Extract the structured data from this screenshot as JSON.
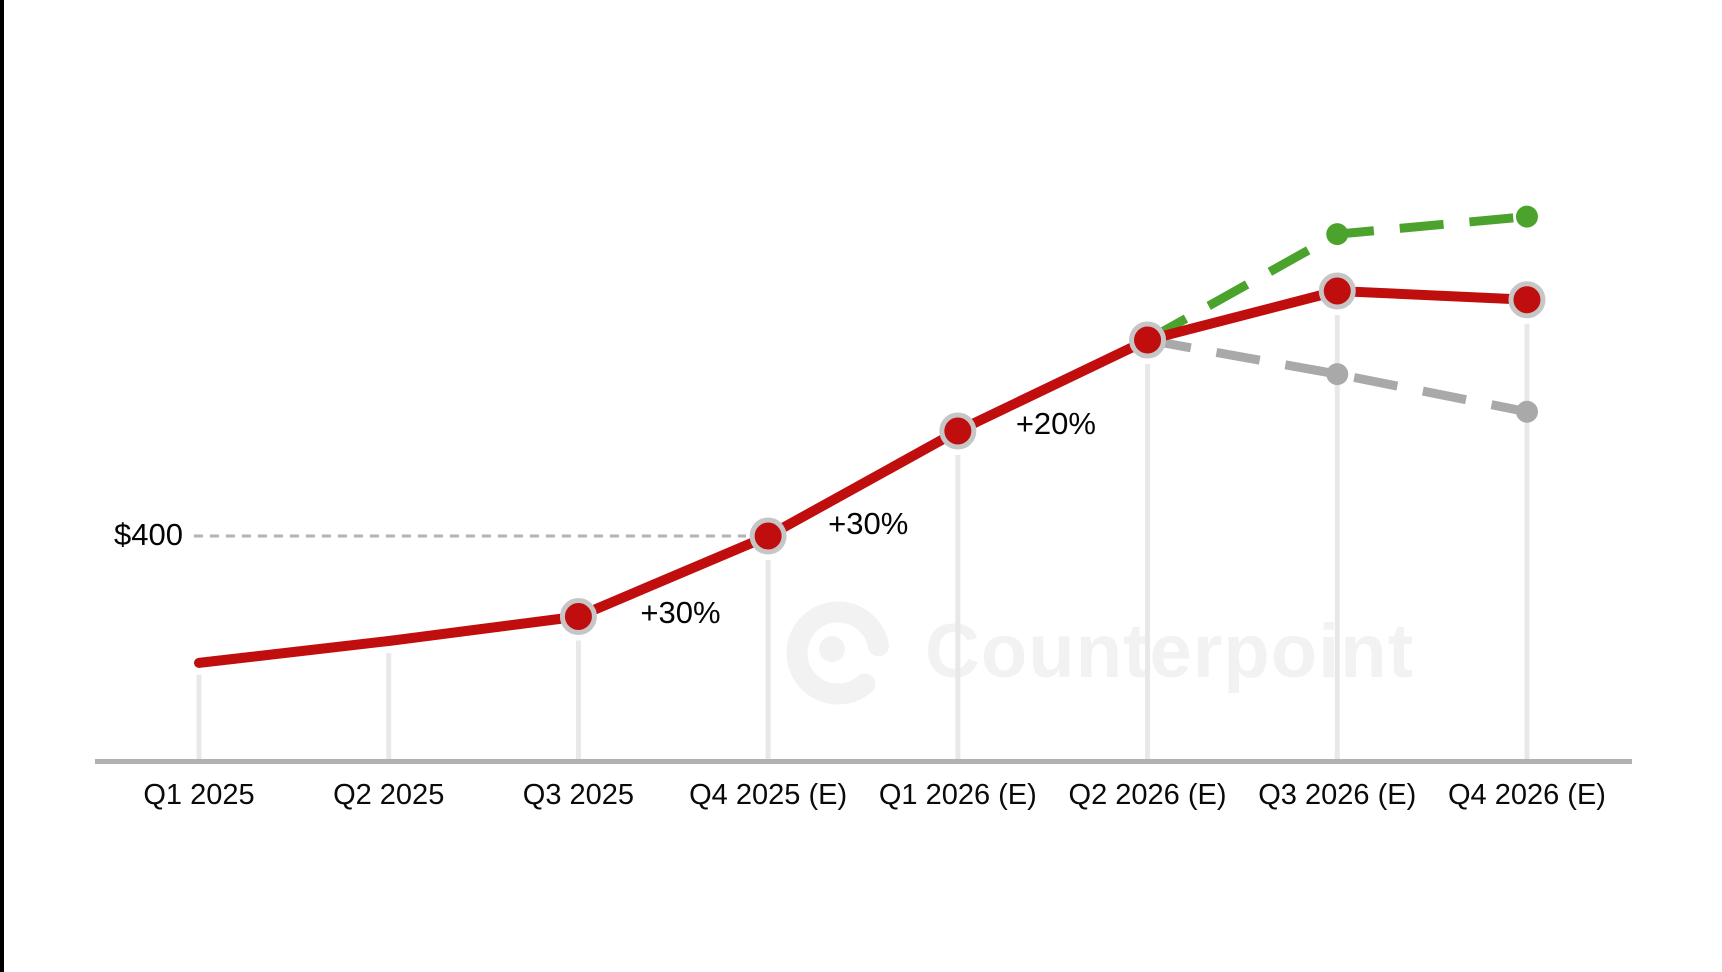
{
  "page": {
    "background": "#ffffff",
    "left_edge_bar_color": "#000000"
  },
  "chart_data": {
    "type": "line",
    "title": "",
    "categories": [
      "Q1 2025",
      "Q2 2025",
      "Q3 2025",
      "Q4 2025 (E)",
      "Q1 2026 (E)",
      "Q2 2026 (E)",
      "Q3 2026 (E)",
      "Q4 2026 (E)"
    ],
    "series": [
      {
        "name": "red-main-line",
        "color": "#c00d0d",
        "line_style": "solid",
        "marker": "large-dot-with-gray-ring",
        "marker_from_index": 2,
        "values": [
          255,
          280,
          308,
          400,
          520,
          624,
          680,
          670
        ],
        "values_estimated": true
      },
      {
        "name": "green-upside-dashed-line",
        "color": "#4ba32d",
        "line_style": "dashed",
        "marker": "small-dot",
        "marker_from_index": 6,
        "values": [
          null,
          null,
          null,
          null,
          null,
          624,
          745,
          765
        ],
        "values_estimated": true
      },
      {
        "name": "gray-downside-dashed-line",
        "color": "#a9a9a9",
        "line_style": "dashed",
        "marker": "small-dot",
        "marker_from_index": 6,
        "values": [
          null,
          null,
          null,
          null,
          null,
          624,
          585,
          542
        ],
        "values_estimated": true
      }
    ],
    "reference_line": {
      "label": "$400",
      "value": 400
    },
    "annotations": [
      {
        "text": "+30%",
        "anchor_category": "Q3 2025",
        "anchor_index": 2
      },
      {
        "text": "+30%",
        "anchor_category": "Q4 2025 (E)",
        "anchor_index": 3
      },
      {
        "text": "+20%",
        "anchor_category": "Q1 2026 (E)",
        "anchor_index": 4
      }
    ],
    "watermark_text": "Counterpoint",
    "axis": {
      "x_labels_visible": true,
      "y_axis_visible": false,
      "gridlines": "vertical-per-category",
      "legend": "none",
      "ylim_estimated": [
        150,
        850
      ]
    },
    "colors": {
      "axis_line": "#b1b1b1",
      "gridline": "#e8e8e8",
      "reference_dash": "#b3b3b3",
      "marker_ring": "#c6c6c6",
      "label_text": "#0a0a0a",
      "watermark": "#f2f2f2"
    }
  }
}
